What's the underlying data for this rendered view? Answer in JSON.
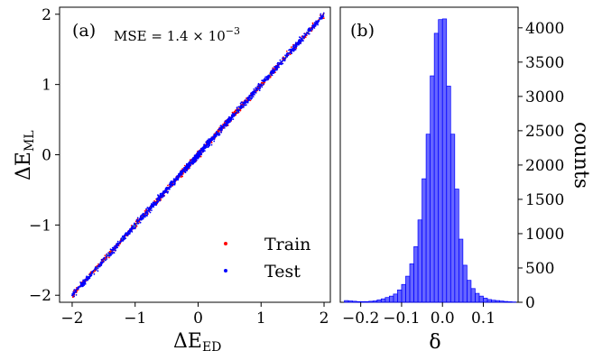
{
  "chart_data": [
    {
      "type": "scatter",
      "panel_label": "(a)",
      "annotation": {
        "prefix": "MSE = 1.4 × 10",
        "exponent": "−3"
      },
      "xlabel": {
        "main": "ΔE",
        "sub": "ED"
      },
      "ylabel": {
        "main": "ΔE",
        "sub": "ML"
      },
      "xlim": [
        -2.2,
        2.1
      ],
      "ylim": [
        -2.1,
        2.1
      ],
      "xticks": [
        -2,
        -1,
        0,
        1,
        2
      ],
      "xtick_labels": [
        "−2",
        "−1",
        "0",
        "1",
        "2"
      ],
      "yticks": [
        -2,
        -1,
        0,
        1,
        2
      ],
      "ytick_labels": [
        "−2",
        "−1",
        "0",
        "1",
        "2"
      ],
      "legend_position": "bottom-right",
      "series": [
        {
          "name": "Train",
          "color": "#ff0000",
          "x_range": [
            -2,
            2
          ],
          "spread": 0.04
        },
        {
          "name": "Test",
          "color": "#0000ff",
          "x_range": [
            -2,
            2
          ],
          "spread": 0.04
        }
      ],
      "reference_line": {
        "x": [
          -2,
          2
        ],
        "y": [
          -2,
          2
        ],
        "color": "#2ca02c"
      }
    },
    {
      "type": "bar",
      "panel_label": "(b)",
      "xlabel": "δ",
      "ylabel": "counts",
      "xlim": [
        -0.25,
        0.185
      ],
      "ylim": [
        0,
        4300
      ],
      "xticks": [
        -0.2,
        -0.1,
        0.0,
        0.1
      ],
      "xtick_labels": [
        "−0.2",
        "−0.1",
        "0.0",
        "0.1"
      ],
      "yticks": [
        0,
        500,
        1000,
        1500,
        2000,
        2500,
        3000,
        3500,
        4000
      ],
      "ytick_labels": [
        "0",
        "500",
        "1000",
        "1500",
        "2000",
        "2500",
        "3000",
        "3500",
        "4000"
      ],
      "ytick_side": "right",
      "bar_color": "#0000ff",
      "bin_width": 0.01,
      "bin_starts": [
        -0.24,
        -0.23,
        -0.22,
        -0.21,
        -0.2,
        -0.19,
        -0.18,
        -0.17,
        -0.16,
        -0.15,
        -0.14,
        -0.13,
        -0.12,
        -0.11,
        -0.1,
        -0.09,
        -0.08,
        -0.07,
        -0.06,
        -0.05,
        -0.04,
        -0.03,
        -0.02,
        -0.01,
        0.0,
        0.01,
        0.02,
        0.03,
        0.04,
        0.05,
        0.06,
        0.07,
        0.08,
        0.09,
        0.1,
        0.11,
        0.12,
        0.13,
        0.14,
        0.15,
        0.16,
        0.17
      ],
      "counts": [
        25,
        20,
        15,
        10,
        10,
        10,
        15,
        20,
        35,
        50,
        70,
        90,
        120,
        180,
        260,
        380,
        560,
        810,
        1200,
        1800,
        2450,
        3300,
        3920,
        4120,
        4130,
        3150,
        2450,
        1650,
        920,
        540,
        320,
        200,
        130,
        90,
        60,
        40,
        30,
        25,
        18,
        12,
        8,
        5
      ]
    }
  ]
}
